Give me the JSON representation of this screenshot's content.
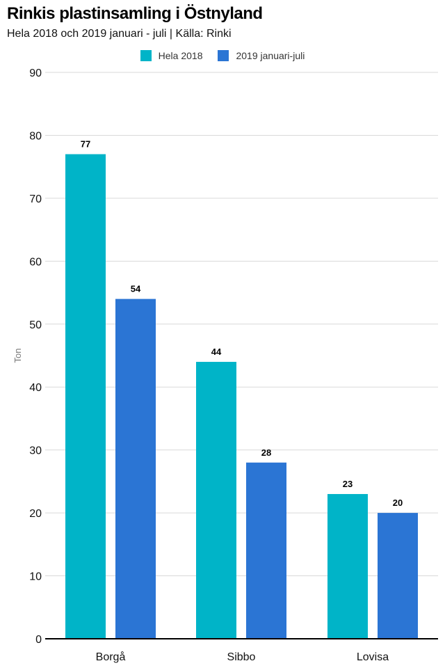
{
  "chart_data": {
    "type": "bar",
    "title": "Rinkis plastinsamling i Östnyland",
    "subtitle": "Hela 2018 och 2019 januari - juli | Källa: Rinki",
    "xlabel": "",
    "ylabel": "Ton",
    "ylim": [
      0,
      90
    ],
    "yticks": [
      0,
      10,
      20,
      30,
      40,
      50,
      60,
      70,
      80,
      90
    ],
    "grid": true,
    "legend_position": "top-center",
    "categories": [
      "Borgå",
      "Sibbo",
      "Lovisa"
    ],
    "series": [
      {
        "name": "Hela 2018",
        "color": "#00b4c8",
        "values": [
          77,
          44,
          23
        ]
      },
      {
        "name": "2019 januari-juli",
        "color": "#2b75d4",
        "values": [
          54,
          28,
          20
        ]
      }
    ]
  }
}
